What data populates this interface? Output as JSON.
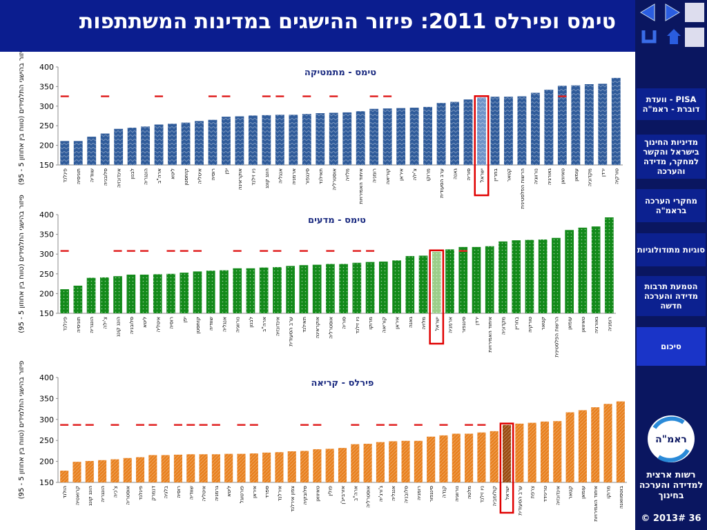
{
  "title": "טימס ופירלס 2011: פיזור ההישגים במדינות המשתתפות",
  "sidebar": {
    "items": [
      "PISA - וועדת דוברת - ראמ\"ה",
      "מדיניות החינוך בישראל והקשר למחקר, מדידה והערכה",
      "מחקרי הערכה בראמ\"ה",
      "סוגיות מתודולוגיות",
      "הטמעת תרבות מדידה והערכה חדשה",
      "סיכום"
    ],
    "active": 5,
    "logo": "ראמ\"ה",
    "org": "רשות ארצית למדידה והערכה בחינוך",
    "footer": "© 2013# 36"
  },
  "chart_data": [
    {
      "type": "bar",
      "title": "טימס - מתמטיקה",
      "ylabel": "פיזור בהישגי התלמידים (טווח בין אחוזון 5 - 95)",
      "ylim": [
        150,
        400
      ],
      "yticks": [
        150,
        200,
        250,
        300,
        350,
        400
      ],
      "color": "#2f5b9a",
      "highlight": 31,
      "highlight_color": "#6f93c8",
      "mark_color": "#e02020",
      "categories": [
        "פינלנד",
        "תוניסיה",
        "שוודיה",
        "סלובניה",
        "אינדונזיה",
        "לבנון",
        "הונגריה",
        "ארה\"ב",
        "ליטא",
        "קזחסטן",
        "איטליה",
        "רוסיה",
        "יפן",
        "אוקראינה",
        "ניו זילנד",
        "הונג קונג",
        "אנגליה",
        "ארמניה",
        "סינגפור",
        "תאילנד",
        "אוסטרליה",
        "מלזיה",
        "איחוד האמירויות",
        "רומניה",
        "קוריאה",
        "איראן",
        "צ'ילה",
        "מרוקו",
        "ערב הסעודית",
        "גאנה",
        "סוריה",
        "ישראל",
        "בחריין",
        "קטאר",
        "הרשות הפלסטינית",
        "נורווגיה",
        "גאורגיה",
        "טאיוואן",
        "עומאן",
        "מקדוניה",
        "ירדן",
        "טורקיה"
      ],
      "values": [
        211,
        211,
        222,
        230,
        242,
        245,
        248,
        253,
        255,
        258,
        262,
        265,
        273,
        274,
        276,
        277,
        278,
        278,
        280,
        282,
        283,
        284,
        287,
        293,
        294,
        295,
        296,
        298,
        308,
        311,
        317,
        322,
        324,
        324,
        325,
        334,
        342,
        352,
        353,
        356,
        357,
        372
      ],
      "marks": [
        325,
        null,
        null,
        325,
        null,
        null,
        null,
        325,
        null,
        null,
        null,
        325,
        325,
        null,
        null,
        325,
        325,
        null,
        325,
        null,
        325,
        null,
        null,
        325,
        325,
        null,
        null,
        null,
        null,
        null,
        null,
        null,
        null,
        null,
        null,
        null,
        null,
        325,
        null,
        null,
        null,
        null
      ]
    },
    {
      "type": "bar",
      "title": "טימס - מדעים",
      "ylabel": "פיזור בהישגי התלמידים (טווח בין אחוזון 5 - 95)",
      "ylim": [
        150,
        400
      ],
      "yticks": [
        150,
        200,
        250,
        300,
        350,
        400
      ],
      "color": "#138a1a",
      "highlight": 28,
      "highlight_color": "#9ccf8a",
      "mark_color": "#e02020",
      "categories": [
        "פינלנד",
        "תוניסיה",
        "הונגריה",
        "צ'ילה",
        "הונג קונג",
        "סלובניה",
        "ליטא",
        "איטליה",
        "רוסיה",
        "יפן",
        "קזחסטן",
        "שוודיה",
        "אנגליה",
        "נורווגיה",
        "לבנון",
        "ארה\"ב",
        "אינדונזיה",
        "ערב הסעודית",
        "תאילנד",
        "אוקראינה",
        "אוסטרליה",
        "סוריה",
        "ניו זילנד",
        "מרוקו",
        "קוריאה",
        "איראן",
        "גאנה",
        "מלזיה",
        "ישראל",
        "ארמניה",
        "סינגפור",
        "ירדן",
        "איחוד האמירויות",
        "מקדוניה",
        "בחריין",
        "טורקיה",
        "קטאר",
        "הרשות הפלסטינית",
        "עומאן",
        "טאיוואן",
        "גאורגיה",
        "רומניה"
      ],
      "values": [
        211,
        220,
        240,
        241,
        244,
        248,
        248,
        249,
        250,
        253,
        256,
        258,
        259,
        264,
        264,
        266,
        267,
        270,
        272,
        273,
        275,
        275,
        278,
        280,
        281,
        284,
        295,
        296,
        306,
        312,
        318,
        318,
        320,
        332,
        335,
        336,
        337,
        341,
        361,
        367,
        370,
        393
      ],
      "marks": [
        308,
        null,
        null,
        null,
        308,
        308,
        308,
        null,
        308,
        308,
        308,
        null,
        null,
        308,
        null,
        308,
        308,
        null,
        308,
        null,
        308,
        null,
        308,
        308,
        null,
        null,
        null,
        null,
        null,
        null,
        308,
        null,
        null,
        null,
        null,
        null,
        null,
        null,
        null,
        null,
        null,
        null
      ]
    },
    {
      "type": "bar",
      "title": "פירלס - קריאה",
      "ylabel": "פיזור בהישגי התלמידים (טווח בין אחוזון 5 - 95)",
      "ylim": [
        150,
        400
      ],
      "yticks": [
        150,
        200,
        250,
        300,
        350,
        400
      ],
      "color": "#e8801e",
      "highlight": 35,
      "highlight_color": "#9a4a10",
      "mark_color": "#e02020",
      "categories": [
        "הולנד",
        "קרואטיה",
        "הונג קונג",
        "הונגריה",
        "צ'כיה",
        "אוסטריה",
        "פינלנד",
        "דנמרק",
        "בלגיה",
        "רוסיה",
        "שוודיה",
        "איטליה",
        "גרמניה",
        "ליטא",
        "פורטוגל",
        "איראן",
        "ספרד",
        "אירלנד",
        "צפון אירלנד",
        "סלובקיה",
        "טאיוואן",
        "פולין",
        "אזרבייג'ן",
        "ארה\"ב",
        "אוסטרליה",
        "ג'ורג'יה",
        "אנגליה",
        "סלובניה",
        "רומניה",
        "סינגפור",
        "קנדה",
        "נורווגיה",
        "מלטה",
        "ניו זילנד",
        "קולומביה",
        "ישראל",
        "ערב הסעודית",
        "צרפת",
        "טרינידד",
        "אינדונזיה",
        "קטאר",
        "עומאן",
        "איחוד האמירויות",
        "מרוקו",
        "בוטסוואנה"
      ],
      "values": [
        178,
        199,
        201,
        203,
        205,
        208,
        210,
        215,
        215,
        216,
        217,
        217,
        217,
        218,
        218,
        219,
        221,
        222,
        224,
        225,
        229,
        230,
        232,
        241,
        242,
        246,
        248,
        249,
        249,
        259,
        262,
        266,
        266,
        269,
        272,
        287,
        290,
        292,
        295,
        296,
        317,
        322,
        329,
        337,
        343
      ],
      "marks": [
        287,
        287,
        287,
        null,
        287,
        null,
        287,
        287,
        null,
        287,
        287,
        287,
        287,
        null,
        287,
        287,
        null,
        null,
        null,
        287,
        287,
        null,
        null,
        287,
        null,
        287,
        287,
        null,
        287,
        null,
        287,
        null,
        287,
        287,
        null,
        null,
        null,
        null,
        null,
        null,
        null,
        null,
        null,
        null,
        null
      ]
    }
  ]
}
